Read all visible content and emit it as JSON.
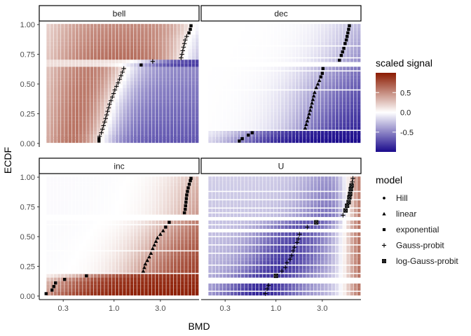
{
  "chart_data": {
    "type": "heatmap",
    "xlabel": "BMD",
    "ylabel": "ECDF",
    "x_scale": "log10",
    "xlim": [
      0.17,
      7.5
    ],
    "ylim": [
      -0.03,
      1.03
    ],
    "x_ticks": [
      0.3,
      1.0,
      3.0
    ],
    "x_tick_labels": [
      "0.3",
      "1.0",
      "3.0"
    ],
    "y_ticks": [
      0,
      0.25,
      0.5,
      0.75,
      1
    ],
    "y_tick_labels": [
      "0.00",
      "0.25",
      "0.50",
      "0.75",
      "1.00"
    ],
    "legend_position": "right",
    "colorscale": {
      "title": "scaled signal",
      "low_color": "#1a0a8c",
      "mid_color": "#ffffff",
      "high_color": "#8b1a00",
      "range": [
        -1,
        1
      ],
      "ticks": [
        0.5,
        0.0,
        -0.5
      ],
      "tick_labels": [
        "0.5",
        "0.0",
        "-0.5"
      ]
    },
    "shape_legend": {
      "title": "model",
      "entries": [
        {
          "label": "Hill",
          "shape": "dot"
        },
        {
          "label": "linear",
          "shape": "triangle"
        },
        {
          "label": "exponential",
          "shape": "square"
        },
        {
          "label": "Gauss-probit",
          "shape": "plus"
        },
        {
          "label": "log-Gauss-probit",
          "shape": "boxed-x"
        }
      ]
    },
    "panels": [
      {
        "name": "bell",
        "points": [
          {
            "x": 0.7,
            "y": 0.02,
            "model": "exponential"
          },
          {
            "x": 0.7,
            "y": 0.04,
            "model": "exponential"
          },
          {
            "x": 0.71,
            "y": 0.06,
            "model": "Gauss-probit"
          },
          {
            "x": 0.74,
            "y": 0.09,
            "model": "Gauss-probit"
          },
          {
            "x": 0.76,
            "y": 0.12,
            "model": "Gauss-probit"
          },
          {
            "x": 0.78,
            "y": 0.15,
            "model": "Gauss-probit"
          },
          {
            "x": 0.8,
            "y": 0.18,
            "model": "Gauss-probit"
          },
          {
            "x": 0.82,
            "y": 0.21,
            "model": "Gauss-probit"
          },
          {
            "x": 0.84,
            "y": 0.24,
            "model": "Gauss-probit"
          },
          {
            "x": 0.86,
            "y": 0.27,
            "model": "Gauss-probit"
          },
          {
            "x": 0.88,
            "y": 0.3,
            "model": "Gauss-probit"
          },
          {
            "x": 0.9,
            "y": 0.33,
            "model": "Gauss-probit"
          },
          {
            "x": 0.93,
            "y": 0.36,
            "model": "Gauss-probit"
          },
          {
            "x": 0.96,
            "y": 0.39,
            "model": "Gauss-probit"
          },
          {
            "x": 0.99,
            "y": 0.42,
            "model": "Gauss-probit"
          },
          {
            "x": 1.02,
            "y": 0.45,
            "model": "Gauss-probit"
          },
          {
            "x": 1.06,
            "y": 0.48,
            "model": "Gauss-probit"
          },
          {
            "x": 1.1,
            "y": 0.51,
            "model": "Gauss-probit"
          },
          {
            "x": 1.14,
            "y": 0.54,
            "model": "Gauss-probit"
          },
          {
            "x": 1.18,
            "y": 0.57,
            "model": "Gauss-probit"
          },
          {
            "x": 1.22,
            "y": 0.6,
            "model": "Gauss-probit"
          },
          {
            "x": 1.26,
            "y": 0.63,
            "model": "Gauss-probit"
          },
          {
            "x": 1.9,
            "y": 0.66,
            "model": "exponential"
          },
          {
            "x": 2.5,
            "y": 0.69,
            "model": "Gauss-probit"
          },
          {
            "x": 4.9,
            "y": 0.72,
            "model": "Gauss-probit"
          },
          {
            "x": 5.0,
            "y": 0.75,
            "model": "Gauss-probit"
          },
          {
            "x": 5.1,
            "y": 0.78,
            "model": "Gauss-probit"
          },
          {
            "x": 5.2,
            "y": 0.81,
            "model": "Gauss-probit"
          },
          {
            "x": 5.3,
            "y": 0.84,
            "model": "Gauss-probit"
          },
          {
            "x": 5.4,
            "y": 0.87,
            "model": "Gauss-probit"
          },
          {
            "x": 5.6,
            "y": 0.9,
            "model": "Gauss-probit"
          },
          {
            "x": 5.9,
            "y": 0.93,
            "model": "exponential"
          },
          {
            "x": 6.1,
            "y": 0.96,
            "model": "exponential"
          },
          {
            "x": 6.2,
            "y": 0.99,
            "model": "exponential"
          }
        ]
      },
      {
        "name": "dec",
        "points": [
          {
            "x": 0.42,
            "y": 0.02,
            "model": "exponential"
          },
          {
            "x": 0.45,
            "y": 0.04,
            "model": "exponential"
          },
          {
            "x": 0.52,
            "y": 0.07,
            "model": "exponential"
          },
          {
            "x": 0.57,
            "y": 0.09,
            "model": "exponential"
          },
          {
            "x": 2.0,
            "y": 0.13,
            "model": "linear"
          },
          {
            "x": 2.05,
            "y": 0.16,
            "model": "linear"
          },
          {
            "x": 2.1,
            "y": 0.19,
            "model": "linear"
          },
          {
            "x": 2.15,
            "y": 0.22,
            "model": "linear"
          },
          {
            "x": 2.2,
            "y": 0.25,
            "model": "linear"
          },
          {
            "x": 2.25,
            "y": 0.28,
            "model": "linear"
          },
          {
            "x": 2.3,
            "y": 0.31,
            "model": "linear"
          },
          {
            "x": 2.35,
            "y": 0.34,
            "model": "linear"
          },
          {
            "x": 2.4,
            "y": 0.37,
            "model": "linear"
          },
          {
            "x": 2.45,
            "y": 0.4,
            "model": "linear"
          },
          {
            "x": 2.5,
            "y": 0.43,
            "model": "linear"
          },
          {
            "x": 2.6,
            "y": 0.47,
            "model": "linear"
          },
          {
            "x": 2.7,
            "y": 0.5,
            "model": "linear"
          },
          {
            "x": 2.8,
            "y": 0.53,
            "model": "linear"
          },
          {
            "x": 2.9,
            "y": 0.56,
            "model": "exponential"
          },
          {
            "x": 3.0,
            "y": 0.59,
            "model": "exponential"
          },
          {
            "x": 3.05,
            "y": 0.63,
            "model": "exponential"
          },
          {
            "x": 4.5,
            "y": 0.7,
            "model": "exponential"
          },
          {
            "x": 4.7,
            "y": 0.74,
            "model": "exponential"
          },
          {
            "x": 4.85,
            "y": 0.77,
            "model": "exponential"
          },
          {
            "x": 5.0,
            "y": 0.8,
            "model": "exponential"
          },
          {
            "x": 5.15,
            "y": 0.84,
            "model": "exponential"
          },
          {
            "x": 5.3,
            "y": 0.87,
            "model": "exponential"
          },
          {
            "x": 5.4,
            "y": 0.9,
            "model": "exponential"
          },
          {
            "x": 5.5,
            "y": 0.93,
            "model": "exponential"
          },
          {
            "x": 5.6,
            "y": 0.96,
            "model": "exponential"
          },
          {
            "x": 5.7,
            "y": 0.99,
            "model": "exponential"
          }
        ]
      },
      {
        "name": "inc",
        "points": [
          {
            "x": 0.2,
            "y": 0.02,
            "model": "exponential"
          },
          {
            "x": 0.23,
            "y": 0.05,
            "model": "exponential"
          },
          {
            "x": 0.24,
            "y": 0.08,
            "model": "exponential"
          },
          {
            "x": 0.25,
            "y": 0.11,
            "model": "exponential"
          },
          {
            "x": 0.31,
            "y": 0.14,
            "model": "exponential"
          },
          {
            "x": 0.52,
            "y": 0.17,
            "model": "exponential"
          },
          {
            "x": 2.0,
            "y": 0.21,
            "model": "linear"
          },
          {
            "x": 2.05,
            "y": 0.24,
            "model": "linear"
          },
          {
            "x": 2.1,
            "y": 0.27,
            "model": "linear"
          },
          {
            "x": 2.2,
            "y": 0.3,
            "model": "linear"
          },
          {
            "x": 2.3,
            "y": 0.33,
            "model": "linear"
          },
          {
            "x": 2.4,
            "y": 0.36,
            "model": "linear"
          },
          {
            "x": 2.5,
            "y": 0.4,
            "model": "linear"
          },
          {
            "x": 2.6,
            "y": 0.43,
            "model": "linear"
          },
          {
            "x": 2.7,
            "y": 0.46,
            "model": "linear"
          },
          {
            "x": 2.8,
            "y": 0.49,
            "model": "linear"
          },
          {
            "x": 3.0,
            "y": 0.52,
            "model": "linear"
          },
          {
            "x": 3.2,
            "y": 0.55,
            "model": "linear"
          },
          {
            "x": 3.4,
            "y": 0.58,
            "model": "exponential"
          },
          {
            "x": 3.7,
            "y": 0.62,
            "model": "exponential"
          },
          {
            "x": 5.3,
            "y": 0.7,
            "model": "exponential"
          },
          {
            "x": 5.4,
            "y": 0.73,
            "model": "exponential"
          },
          {
            "x": 5.45,
            "y": 0.76,
            "model": "exponential"
          },
          {
            "x": 5.5,
            "y": 0.79,
            "model": "exponential"
          },
          {
            "x": 5.55,
            "y": 0.82,
            "model": "exponential"
          },
          {
            "x": 5.6,
            "y": 0.85,
            "model": "exponential"
          },
          {
            "x": 5.7,
            "y": 0.88,
            "model": "exponential"
          },
          {
            "x": 5.8,
            "y": 0.91,
            "model": "exponential"
          },
          {
            "x": 5.95,
            "y": 0.94,
            "model": "exponential"
          },
          {
            "x": 6.1,
            "y": 0.97,
            "model": "exponential"
          },
          {
            "x": 6.2,
            "y": 0.99,
            "model": "exponential"
          }
        ]
      },
      {
        "name": "U",
        "points": [
          {
            "x": 0.78,
            "y": 0.02,
            "model": "Gauss-probit"
          },
          {
            "x": 0.81,
            "y": 0.06,
            "model": "Gauss-probit"
          },
          {
            "x": 0.84,
            "y": 0.09,
            "model": "Gauss-probit"
          },
          {
            "x": 1.0,
            "y": 0.17,
            "model": "log-Gauss-probit"
          },
          {
            "x": 1.15,
            "y": 0.21,
            "model": "Gauss-probit"
          },
          {
            "x": 1.25,
            "y": 0.24,
            "model": "Gauss-probit"
          },
          {
            "x": 1.3,
            "y": 0.28,
            "model": "Gauss-probit"
          },
          {
            "x": 1.4,
            "y": 0.31,
            "model": "Gauss-probit"
          },
          {
            "x": 1.45,
            "y": 0.34,
            "model": "Gauss-probit"
          },
          {
            "x": 1.5,
            "y": 0.38,
            "model": "Gauss-probit"
          },
          {
            "x": 1.55,
            "y": 0.41,
            "model": "Gauss-probit"
          },
          {
            "x": 1.65,
            "y": 0.45,
            "model": "Gauss-probit"
          },
          {
            "x": 1.7,
            "y": 0.48,
            "model": "Gauss-probit"
          },
          {
            "x": 1.75,
            "y": 0.52,
            "model": "Gauss-probit"
          },
          {
            "x": 2.1,
            "y": 0.58,
            "model": "Gauss-probit"
          },
          {
            "x": 2.6,
            "y": 0.62,
            "model": "log-Gauss-probit"
          },
          {
            "x": 4.9,
            "y": 0.68,
            "model": "Gauss-probit"
          },
          {
            "x": 5.2,
            "y": 0.72,
            "model": "log-Gauss-probit"
          },
          {
            "x": 5.4,
            "y": 0.76,
            "model": "log-Gauss-probit"
          },
          {
            "x": 5.6,
            "y": 0.79,
            "model": "log-Gauss-probit"
          },
          {
            "x": 5.7,
            "y": 0.83,
            "model": "log-Gauss-probit"
          },
          {
            "x": 5.8,
            "y": 0.86,
            "model": "log-Gauss-probit"
          },
          {
            "x": 5.9,
            "y": 0.9,
            "model": "log-Gauss-probit"
          },
          {
            "x": 6.0,
            "y": 0.93,
            "model": "log-Gauss-probit"
          },
          {
            "x": 6.1,
            "y": 0.96,
            "model": "Gauss-probit"
          },
          {
            "x": 6.2,
            "y": 0.99,
            "model": "Gauss-probit"
          }
        ]
      }
    ]
  }
}
